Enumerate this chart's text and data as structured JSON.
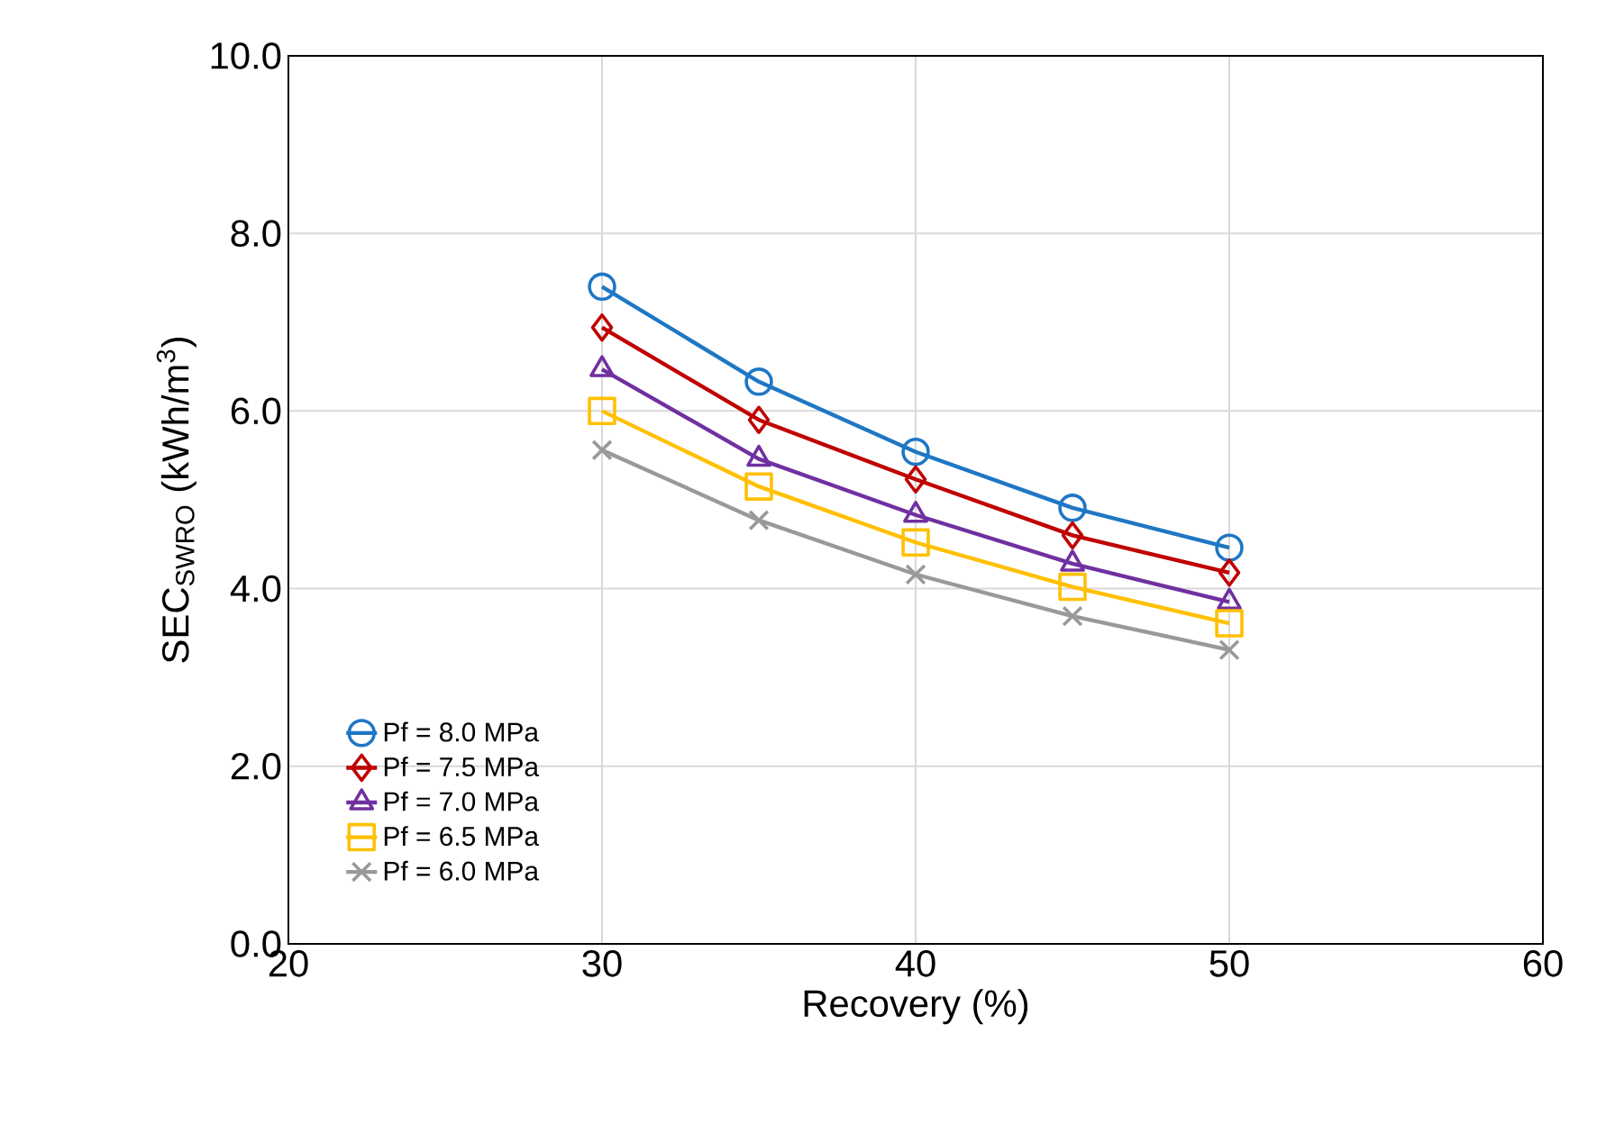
{
  "chart_data": {
    "type": "line",
    "xlabel": "Recovery (%)",
    "ylabel": "SEC$_{SWRO}$ (kWh/m$^{3}$)",
    "x": [
      30,
      35,
      40,
      45,
      50
    ],
    "xlim": [
      20,
      60
    ],
    "xticks": [
      20,
      30,
      40,
      50,
      60
    ],
    "ylim": [
      0,
      10
    ],
    "yticks": [
      {
        "value": 0,
        "label": "0.0"
      },
      {
        "value": 2,
        "label": "2.0"
      },
      {
        "value": 4,
        "label": "4.0"
      },
      {
        "value": 6,
        "label": "6.0"
      },
      {
        "value": 8,
        "label": "8.0"
      },
      {
        "value": 10,
        "label": "10.0"
      }
    ],
    "grid": true,
    "legend": "bottom left",
    "series": [
      {
        "name": "Pf = 8.0 MPa",
        "color": "#1f77c4",
        "marker": "circle",
        "values": [
          7.4,
          6.33,
          5.54,
          4.91,
          4.46
        ]
      },
      {
        "name": "Pf = 7.5 MPa",
        "color": "#c00000",
        "marker": "diamond",
        "values": [
          6.94,
          5.9,
          5.23,
          4.6,
          4.18
        ]
      },
      {
        "name": "Pf = 7.0 MPa",
        "color": "#7030a0",
        "marker": "triangle",
        "values": [
          6.47,
          5.46,
          4.83,
          4.28,
          3.85
        ]
      },
      {
        "name": "Pf = 6.5 MPa",
        "color": "#ffc000",
        "marker": "square",
        "values": [
          6.0,
          5.15,
          4.52,
          4.02,
          3.61
        ]
      },
      {
        "name": "Pf = 6.0 MPa",
        "color": "#999999",
        "marker": "cross",
        "values": [
          5.56,
          4.77,
          4.16,
          3.69,
          3.31
        ]
      }
    ]
  }
}
